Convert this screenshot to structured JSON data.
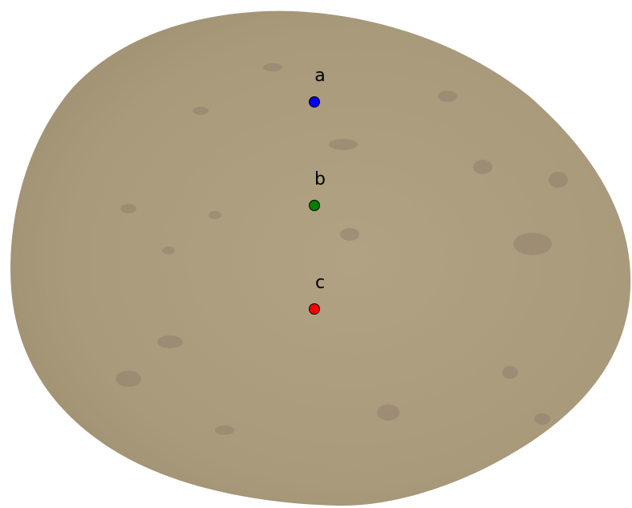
{
  "points": [
    {
      "label": "a",
      "color": "#0000ff"
    },
    {
      "label": "b",
      "color": "#008000"
    },
    {
      "label": "c",
      "color": "#ff0000"
    }
  ]
}
